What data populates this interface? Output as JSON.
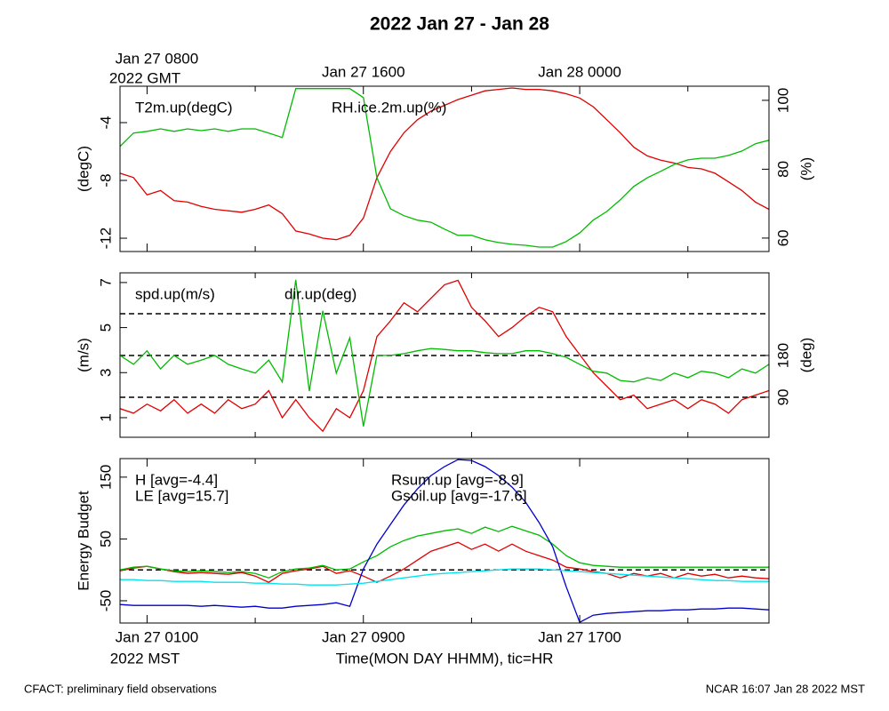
{
  "title": "2022 Jan 27 - Jan 28",
  "footer_left": "CFACT: preliminary field observations",
  "footer_right": "NCAR 16:07 Jan 28 2022 MST",
  "chart_data": [
    {
      "type": "line",
      "xlim": [
        0,
        24
      ],
      "x2ticks": [
        {
          "value": 1,
          "label": "Jan 27 0800"
        },
        {
          "value": 9,
          "label": "Jan 27 1600"
        },
        {
          "value": 17,
          "label": "Jan 28 0000"
        }
      ],
      "x2_sublabel": "2022 GMT",
      "minor_xticks": [
        5,
        13,
        21
      ],
      "ylabel": "(degC)",
      "ylim": [
        -12.92,
        -1.48
      ],
      "yticks": [
        -12,
        -8,
        -4
      ],
      "y2label": "(%)",
      "y2lim": [
        56.1,
        104.1
      ],
      "y2ticks": [
        60,
        80,
        100
      ],
      "x": [
        0,
        0.5,
        1,
        1.5,
        2,
        2.5,
        3,
        3.5,
        4,
        4.5,
        5,
        5.5,
        6,
        6.5,
        7,
        7.5,
        8,
        8.5,
        9,
        9.5,
        10,
        10.5,
        11,
        11.5,
        12,
        12.5,
        13,
        13.5,
        14,
        14.5,
        15,
        15.5,
        16,
        16.5,
        17,
        17.5,
        18,
        18.5,
        19,
        19.5,
        20,
        20.5,
        21,
        21.5,
        22,
        22.5,
        23,
        23.5,
        24
      ],
      "series": [
        {
          "name": "T2m.up(degC)",
          "color": "#e00000",
          "axis": "y",
          "values": [
            -7.5,
            -7.8,
            -9.0,
            -8.7,
            -9.4,
            -9.5,
            -9.8,
            -10.0,
            -10.1,
            -10.2,
            -10.0,
            -9.7,
            -10.3,
            -11.5,
            -11.7,
            -12.0,
            -12.1,
            -11.8,
            -10.6,
            -7.8,
            -6.0,
            -4.7,
            -3.8,
            -3.2,
            -2.8,
            -2.4,
            -2.1,
            -1.8,
            -1.7,
            -1.6,
            -1.7,
            -1.7,
            -1.8,
            -2.0,
            -2.3,
            -2.9,
            -3.8,
            -4.7,
            -5.7,
            -6.3,
            -6.6,
            -6.8,
            -7.1,
            -7.2,
            -7.5,
            -8.1,
            -8.7,
            -9.5,
            -10.0
          ]
        },
        {
          "name": "RH.ice.2m.up(%)",
          "color": "#00bb00",
          "axis": "y2",
          "values": [
            86.6,
            90.5,
            91,
            91.7,
            91,
            91.7,
            91.2,
            91.7,
            91,
            91.7,
            91.7,
            90.5,
            89.2,
            103.4,
            103.4,
            103.4,
            103.4,
            103.4,
            100.8,
            77.5,
            68.5,
            66.5,
            65.2,
            64.6,
            62.6,
            60.8,
            60.8,
            59.5,
            58.7,
            58.2,
            57.9,
            57.4,
            57.4,
            59,
            61.5,
            65.2,
            67.7,
            71.1,
            75,
            77.5,
            79.4,
            81.4,
            82.7,
            83.2,
            83.2,
            84,
            85.3,
            87.4,
            88.4
          ]
        }
      ]
    },
    {
      "type": "line",
      "xlim": [
        0,
        24
      ],
      "minor_xticks": [
        5,
        13,
        21
      ],
      "ylabel": "(m/s)",
      "ylim": [
        0.13,
        7.43
      ],
      "yticks": [
        1,
        3,
        5,
        7
      ],
      "y2label": "(deg)",
      "y2lim": [
        3.7,
        358
      ],
      "y2ticks": [
        90,
        180
      ],
      "y2_ref_lines": [
        90,
        180,
        270
      ],
      "x": [
        0,
        0.5,
        1,
        1.5,
        2,
        2.5,
        3,
        3.5,
        4,
        4.5,
        5,
        5.5,
        6,
        6.5,
        7,
        7.5,
        8,
        8.5,
        9,
        9.5,
        10,
        10.5,
        11,
        11.5,
        12,
        12.5,
        13,
        13.5,
        14,
        14.5,
        15,
        15.5,
        16,
        16.5,
        17,
        17.5,
        18,
        18.5,
        19,
        19.5,
        20,
        20.5,
        21,
        21.5,
        22,
        22.5,
        23,
        23.5,
        24
      ],
      "series": [
        {
          "name": "spd.up(m/s)",
          "color": "#e00000",
          "axis": "y",
          "values": [
            1.4,
            1.2,
            1.6,
            1.3,
            1.8,
            1.2,
            1.6,
            1.2,
            1.8,
            1.4,
            1.6,
            2.2,
            1.0,
            1.8,
            1.0,
            0.4,
            1.4,
            1.0,
            2.2,
            4.6,
            5.3,
            6.1,
            5.7,
            6.3,
            6.9,
            7.1,
            5.9,
            5.3,
            4.6,
            5.0,
            5.5,
            5.9,
            5.7,
            4.6,
            3.8,
            3.0,
            2.4,
            1.8,
            2.0,
            1.4,
            1.6,
            1.8,
            1.4,
            1.8,
            1.6,
            1.2,
            1.8,
            2.0,
            2.2
          ]
        },
        {
          "name": "dir.up(deg)",
          "color": "#00bb00",
          "axis": "y2",
          "values": [
            180,
            161,
            190,
            151,
            180,
            161,
            170,
            180,
            161,
            151,
            142,
            170,
            123,
            343,
            103,
            276,
            142,
            218,
            27,
            180,
            180,
            184,
            190,
            195,
            193,
            190,
            190,
            186,
            184,
            184,
            190,
            190,
            184,
            176,
            161,
            146,
            142,
            126,
            123,
            132,
            126,
            142,
            132,
            146,
            142,
            132,
            151,
            142,
            161
          ]
        }
      ]
    },
    {
      "type": "line",
      "xlim": [
        0,
        24
      ],
      "xticks": [
        {
          "value": 1,
          "label": "Jan 27 0100"
        },
        {
          "value": 9,
          "label": "Jan 27 0900"
        },
        {
          "value": 17,
          "label": "Jan 27 1700"
        }
      ],
      "x_sublabel": "2022 MST",
      "xlabel": "Time(MON DAY HHMM), tic=HR",
      "minor_xticks": [
        5,
        13,
        21
      ],
      "ylabel": "Energy Budget",
      "ylim": [
        -86,
        180
      ],
      "yticks": [
        -50,
        50,
        150
      ],
      "ref_lines": [
        0
      ],
      "x": [
        0,
        0.5,
        1,
        1.5,
        2,
        2.5,
        3,
        3.5,
        4,
        4.5,
        5,
        5.5,
        6,
        6.5,
        7,
        7.5,
        8,
        8.5,
        9,
        9.5,
        10,
        10.5,
        11,
        11.5,
        12,
        12.5,
        13,
        13.5,
        14,
        14.5,
        15,
        15.5,
        16,
        16.5,
        17,
        17.5,
        18,
        18.5,
        19,
        19.5,
        20,
        20.5,
        21,
        21.5,
        22,
        22.5,
        23,
        23.5,
        24
      ],
      "series": [
        {
          "name": "H [avg=-4.4]",
          "color": "#e00000",
          "axis": "y",
          "values": [
            -1.4,
            2.9,
            5.8,
            1.4,
            -2.9,
            -5.8,
            -4.3,
            -5.8,
            -7.2,
            -4.3,
            -10.1,
            -20.1,
            -5.8,
            -1.4,
            1.4,
            5.8,
            -5.8,
            -1.4,
            -10.1,
            -20.1,
            -10.1,
            1.4,
            15.8,
            30.2,
            37.4,
            44.6,
            33.1,
            41.7,
            30.2,
            41.7,
            30.2,
            23.0,
            15.8,
            4.3,
            1.4,
            -2.9,
            -5.8,
            -12.9,
            -5.8,
            -10.1,
            -5.8,
            -12.9,
            -5.8,
            -10.1,
            -7.2,
            -12.9,
            -10.1,
            -12.9,
            -14.4
          ]
        },
        {
          "name": "LE [avg=15.7]",
          "color": "#00bb00",
          "axis": "y",
          "values": [
            0,
            4.3,
            5.8,
            1.4,
            -1.4,
            -2.9,
            -1.4,
            -2.9,
            -4.3,
            -2.9,
            -5.8,
            -12.9,
            -2.9,
            1.4,
            2.9,
            7.2,
            0,
            1.4,
            12.9,
            23.0,
            37.4,
            47.5,
            54.7,
            59.0,
            63.3,
            66.2,
            59.0,
            69.1,
            61.9,
            70.5,
            63.3,
            56.1,
            41.7,
            23.0,
            11.5,
            7.2,
            5.8,
            4.3,
            4.3,
            4.3,
            4.3,
            4.3,
            4.3,
            4.3,
            4.3,
            4.3,
            4.3,
            4.3,
            4.3
          ]
        },
        {
          "name": "Rsum.up [avg=-8.9]",
          "color": "#0000cc",
          "axis": "y",
          "values": [
            -56.1,
            -57.6,
            -57.6,
            -57.6,
            -57.6,
            -57.6,
            -59.0,
            -57.6,
            -59.0,
            -60.4,
            -59.0,
            -61.9,
            -61.9,
            -59.0,
            -57.6,
            -56.1,
            -53.2,
            -59.0,
            1.4,
            41.7,
            73.4,
            105,
            131,
            152.5,
            167,
            178.4,
            177,
            167,
            152.5,
            133.8,
            109.4,
            76.3,
            37.4,
            -27.3,
            -84.9,
            -73.4,
            -70.5,
            -69.1,
            -67.6,
            -66.2,
            -66.2,
            -64.7,
            -64.7,
            -63.3,
            -63.3,
            -61.9,
            -61.9,
            -63.3,
            -64.7
          ]
        },
        {
          "name": "Gsoil.up [avg=-17.6]",
          "color": "#00e5ee",
          "axis": "y",
          "values": [
            -15.8,
            -15.8,
            -17.3,
            -17.3,
            -18.7,
            -18.7,
            -18.7,
            -20.1,
            -20.1,
            -20.1,
            -21.6,
            -21.6,
            -23.0,
            -23.0,
            -24.5,
            -24.5,
            -24.5,
            -23.0,
            -21.6,
            -18.7,
            -15.8,
            -12.9,
            -10.1,
            -7.2,
            -5.8,
            -4.3,
            -2.9,
            -1.4,
            0,
            1.4,
            1.4,
            1.4,
            0,
            -1.4,
            -2.9,
            -4.3,
            -5.8,
            -7.2,
            -8.6,
            -10.1,
            -11.5,
            -12.9,
            -14.4,
            -15.8,
            -17.3,
            -17.3,
            -18.7,
            -18.7,
            -18.7
          ]
        }
      ]
    }
  ]
}
